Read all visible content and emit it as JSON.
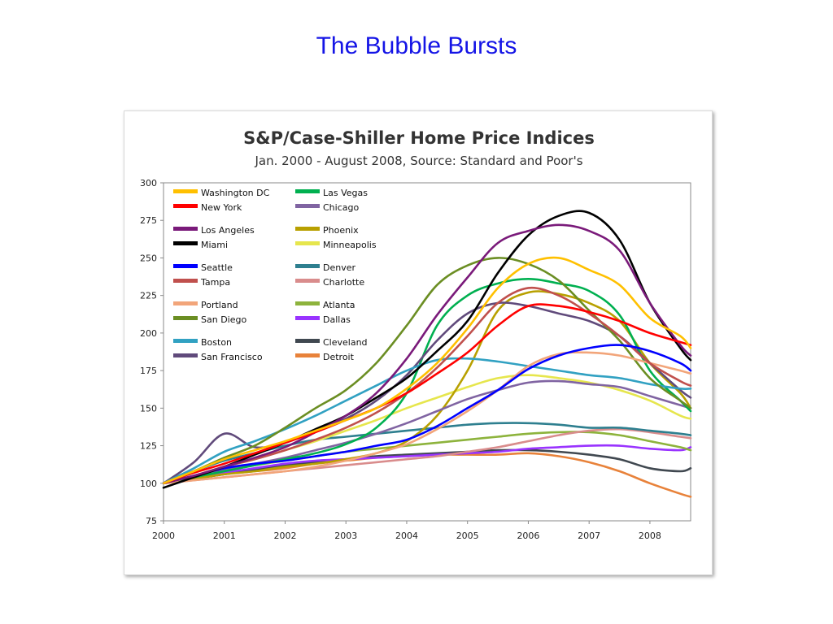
{
  "slide": {
    "title": "The Bubble Bursts"
  },
  "chart_data": {
    "type": "line",
    "title": "S&P/Case-Shiller Home Price Indices",
    "subtitle": "Jan. 2000 - August 2008, Source: Standard and Poor's",
    "xlabel": "",
    "ylabel": "",
    "xlim": [
      2000,
      2008.67
    ],
    "ylim": [
      75,
      300
    ],
    "yticks": [
      75,
      100,
      125,
      150,
      175,
      200,
      225,
      250,
      275,
      300
    ],
    "xticks": [
      2000,
      2001,
      2002,
      2003,
      2004,
      2005,
      2006,
      2007,
      2008
    ],
    "grid": false,
    "legend_position": "top-left",
    "x": [
      2000.0,
      2000.5,
      2001.0,
      2001.5,
      2002.0,
      2002.5,
      2003.0,
      2003.5,
      2004.0,
      2004.5,
      2005.0,
      2005.5,
      2006.0,
      2006.5,
      2007.0,
      2007.5,
      2008.0,
      2008.5,
      2008.67
    ],
    "series": [
      {
        "name": "Washington DC",
        "color": "#ffc000",
        "values": [
          100,
          108,
          116,
          122,
          128,
          135,
          142,
          150,
          163,
          180,
          203,
          230,
          246,
          250,
          242,
          232,
          210,
          198,
          190
        ]
      },
      {
        "name": "New York",
        "color": "#ff0000",
        "values": [
          100,
          107,
          113,
          120,
          127,
          134,
          142,
          150,
          160,
          173,
          187,
          205,
          218,
          218,
          214,
          208,
          200,
          194,
          192
        ]
      },
      {
        "name": "Los Angeles",
        "color": "#7a1a7a",
        "values": [
          100,
          105,
          111,
          117,
          124,
          134,
          145,
          160,
          183,
          212,
          237,
          260,
          268,
          272,
          268,
          255,
          220,
          192,
          185
        ]
      },
      {
        "name": "Miami",
        "color": "#000000",
        "values": [
          97,
          104,
          111,
          119,
          127,
          136,
          145,
          157,
          170,
          188,
          208,
          240,
          265,
          278,
          280,
          262,
          220,
          190,
          182
        ]
      },
      {
        "name": "Seattle",
        "color": "#0000ff",
        "values": [
          100,
          105,
          110,
          113,
          115,
          118,
          121,
          125,
          129,
          138,
          150,
          162,
          176,
          185,
          190,
          192,
          188,
          180,
          175
        ]
      },
      {
        "name": "Tampa",
        "color": "#c0504d",
        "values": [
          100,
          105,
          111,
          116,
          122,
          129,
          137,
          147,
          160,
          177,
          198,
          220,
          230,
          225,
          213,
          198,
          180,
          168,
          165
        ]
      },
      {
        "name": "Portland",
        "color": "#f2a57a",
        "values": [
          100,
          102,
          104,
          106,
          108,
          111,
          115,
          120,
          126,
          136,
          148,
          162,
          178,
          186,
          187,
          185,
          180,
          175,
          173
        ]
      },
      {
        "name": "San Diego",
        "color": "#6b8e23",
        "values": [
          100,
          108,
          117,
          125,
          137,
          150,
          162,
          180,
          205,
          232,
          245,
          250,
          246,
          235,
          215,
          195,
          170,
          155,
          150
        ]
      },
      {
        "name": "Boston",
        "color": "#31a1c2",
        "values": [
          100,
          110,
          121,
          128,
          136,
          145,
          155,
          165,
          175,
          182,
          183,
          181,
          178,
          175,
          172,
          170,
          166,
          163,
          163
        ]
      },
      {
        "name": "San Francisco",
        "color": "#604a7b",
        "values": [
          100,
          114,
          133,
          124,
          127,
          135,
          143,
          155,
          172,
          195,
          213,
          220,
          218,
          213,
          208,
          198,
          180,
          162,
          157
        ]
      },
      {
        "name": "Las Vegas",
        "color": "#00b050",
        "values": [
          100,
          104,
          108,
          112,
          116,
          120,
          126,
          137,
          160,
          205,
          225,
          233,
          236,
          233,
          228,
          212,
          175,
          155,
          148
        ]
      },
      {
        "name": "Chicago",
        "color": "#8064a2",
        "values": [
          100,
          104,
          109,
          113,
          117,
          122,
          127,
          133,
          140,
          148,
          156,
          162,
          167,
          168,
          166,
          164,
          158,
          152,
          150
        ]
      },
      {
        "name": "Phoenix",
        "color": "#b8a000",
        "values": [
          100,
          103,
          106,
          108,
          111,
          113,
          116,
          120,
          128,
          145,
          175,
          215,
          227,
          226,
          220,
          208,
          180,
          160,
          150
        ]
      },
      {
        "name": "Minneapolis",
        "color": "#e6e64d",
        "values": [
          100,
          105,
          111,
          116,
          122,
          128,
          135,
          142,
          150,
          157,
          164,
          170,
          172,
          170,
          167,
          162,
          155,
          145,
          143
        ]
      },
      {
        "name": "Denver",
        "color": "#2e7f8f",
        "values": [
          100,
          108,
          115,
          120,
          125,
          129,
          131,
          133,
          135,
          137,
          139,
          140,
          140,
          139,
          137,
          137,
          135,
          133,
          132
        ]
      },
      {
        "name": "Charlotte",
        "color": "#d98c8c",
        "values": [
          100,
          102,
          104,
          106,
          108,
          110,
          112,
          114,
          116,
          118,
          121,
          124,
          128,
          132,
          135,
          136,
          134,
          131,
          130
        ]
      },
      {
        "name": "Atlanta",
        "color": "#8db33c",
        "values": [
          100,
          104,
          108,
          112,
          115,
          118,
          121,
          123,
          125,
          127,
          129,
          131,
          133,
          134,
          134,
          132,
          128,
          124,
          122
        ]
      },
      {
        "name": "Dallas",
        "color": "#9933ff",
        "values": [
          100,
          103,
          107,
          110,
          113,
          115,
          116,
          117,
          118,
          119,
          120,
          121,
          123,
          124,
          125,
          125,
          123,
          122,
          124
        ]
      },
      {
        "name": "Cleveland",
        "color": "#404850",
        "values": [
          100,
          103,
          106,
          109,
          112,
          114,
          116,
          118,
          119,
          120,
          121,
          122,
          122,
          121,
          119,
          116,
          110,
          108,
          110
        ]
      },
      {
        "name": "Detroit",
        "color": "#e8823a",
        "values": [
          100,
          103,
          106,
          108,
          110,
          113,
          115,
          117,
          118,
          119,
          119,
          119,
          120,
          118,
          114,
          108,
          100,
          93,
          91
        ]
      }
    ]
  }
}
